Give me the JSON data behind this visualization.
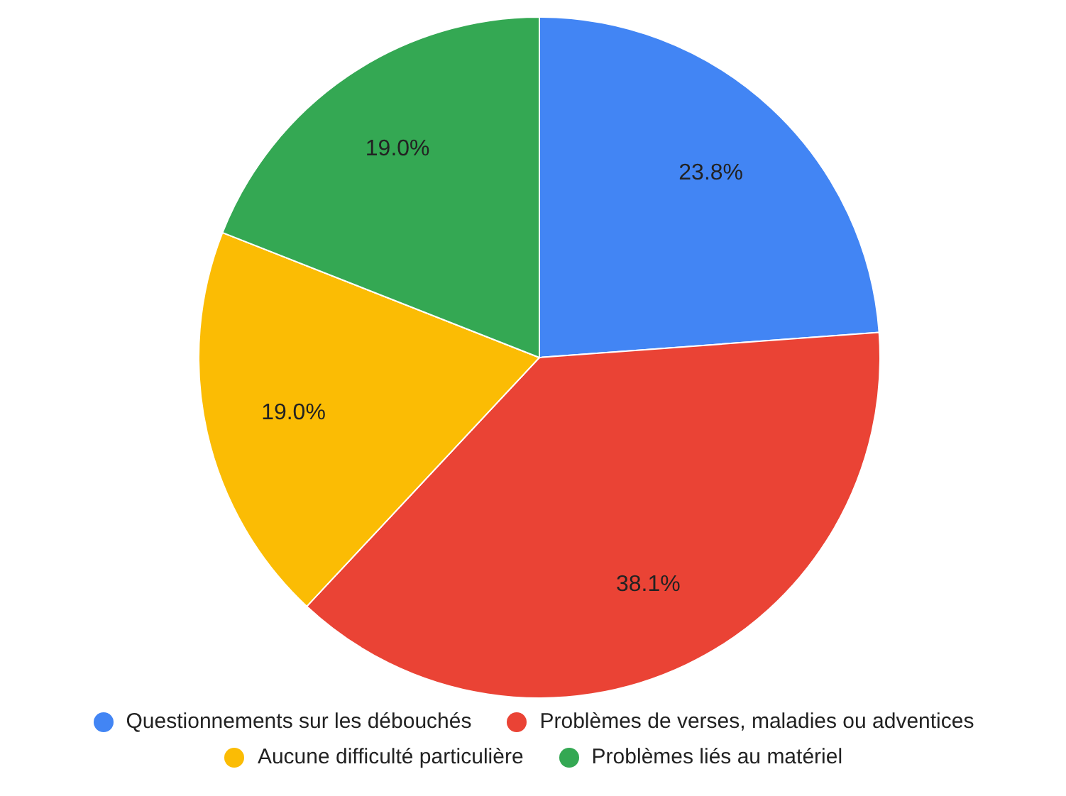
{
  "chart_data": {
    "type": "pie",
    "categories": [
      "Questionnements sur les débouchés",
      "Problèmes de verses, maladies ou adventices",
      "Aucune difficulté particulière",
      "Problèmes liés au matériel"
    ],
    "values": [
      23.8,
      38.1,
      19.0,
      19.0
    ],
    "colors": [
      "#4285f4",
      "#ea4335",
      "#fbbc04",
      "#34a853"
    ],
    "value_labels": [
      "23.8%",
      "38.1%",
      "19.0%",
      "19.0%"
    ],
    "legend": "bottom"
  }
}
